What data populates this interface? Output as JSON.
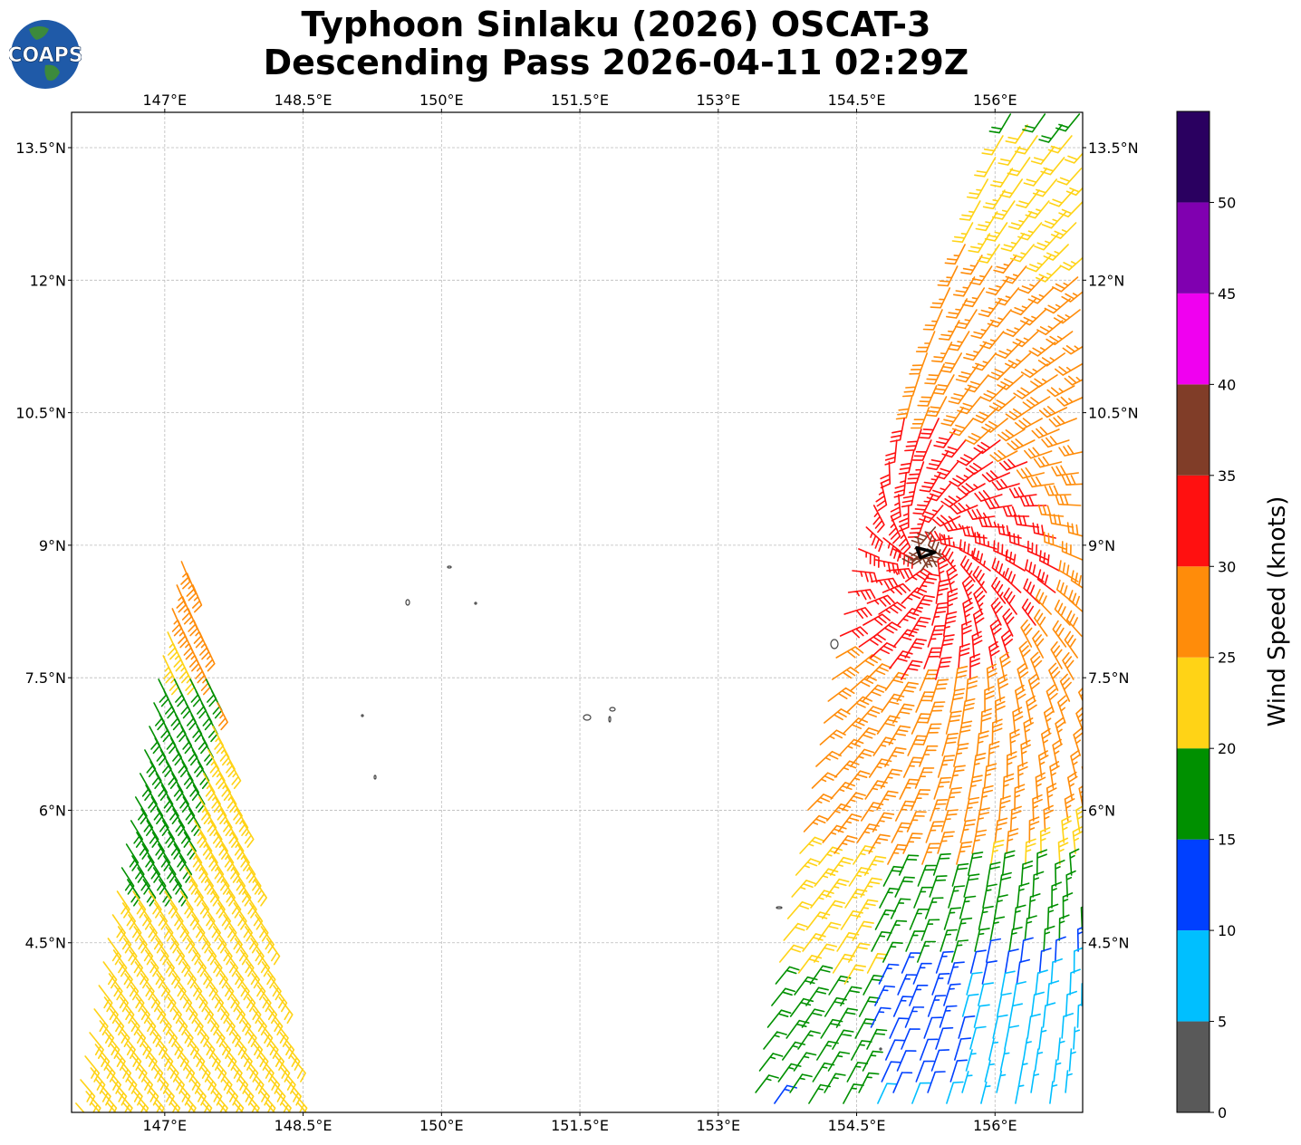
{
  "title": {
    "line1": "Typhoon Sinlaku (2026) OSCAT-3",
    "line2": "Descending Pass 2026-04-11 02:29Z"
  },
  "logo": {
    "text": "COAPS",
    "icon": "globe-icon"
  },
  "map": {
    "lon_range": [
      145.99,
      156.95
    ],
    "lat_range": [
      2.58,
      13.9
    ],
    "lon_ticks": [
      {
        "value": 147,
        "label": "147°E"
      },
      {
        "value": 148.5,
        "label": "148.5°E"
      },
      {
        "value": 150,
        "label": "150°E"
      },
      {
        "value": 151.5,
        "label": "151.5°E"
      },
      {
        "value": 153,
        "label": "153°E"
      },
      {
        "value": 154.5,
        "label": "154.5°E"
      },
      {
        "value": 156,
        "label": "156°E"
      }
    ],
    "lat_ticks": [
      {
        "value": 13.5,
        "label": "13.5°N"
      },
      {
        "value": 12,
        "label": "12°N"
      },
      {
        "value": 10.5,
        "label": "10.5°N"
      },
      {
        "value": 9,
        "label": "9°N"
      },
      {
        "value": 7.5,
        "label": "7.5°N"
      },
      {
        "value": 6,
        "label": "6°N"
      },
      {
        "value": 4.5,
        "label": "4.5°N"
      }
    ],
    "storm_center": {
      "lon": 155.25,
      "lat": 8.92
    }
  },
  "colorbar": {
    "label": "Wind Speed (knots)",
    "ticks": [
      "0",
      "5",
      "10",
      "15",
      "20",
      "25",
      "30",
      "35",
      "40",
      "45",
      "50"
    ],
    "bins": [
      {
        "from": 0,
        "to": 5,
        "color": "#595959"
      },
      {
        "from": 5,
        "to": 10,
        "color": "#00bfff"
      },
      {
        "from": 10,
        "to": 15,
        "color": "#0040ff"
      },
      {
        "from": 15,
        "to": 20,
        "color": "#009000"
      },
      {
        "from": 20,
        "to": 25,
        "color": "#ffd316"
      },
      {
        "from": 25,
        "to": 30,
        "color": "#ff8c0a"
      },
      {
        "from": 30,
        "to": 35,
        "color": "#ff1010"
      },
      {
        "from": 35,
        "to": 40,
        "color": "#803d28"
      },
      {
        "from": 40,
        "to": 45,
        "color": "#f000f0"
      },
      {
        "from": 45,
        "to": 50,
        "color": "#8000b0"
      },
      {
        "from": 50,
        "to": 55,
        "color": "#2a0060"
      }
    ]
  }
}
